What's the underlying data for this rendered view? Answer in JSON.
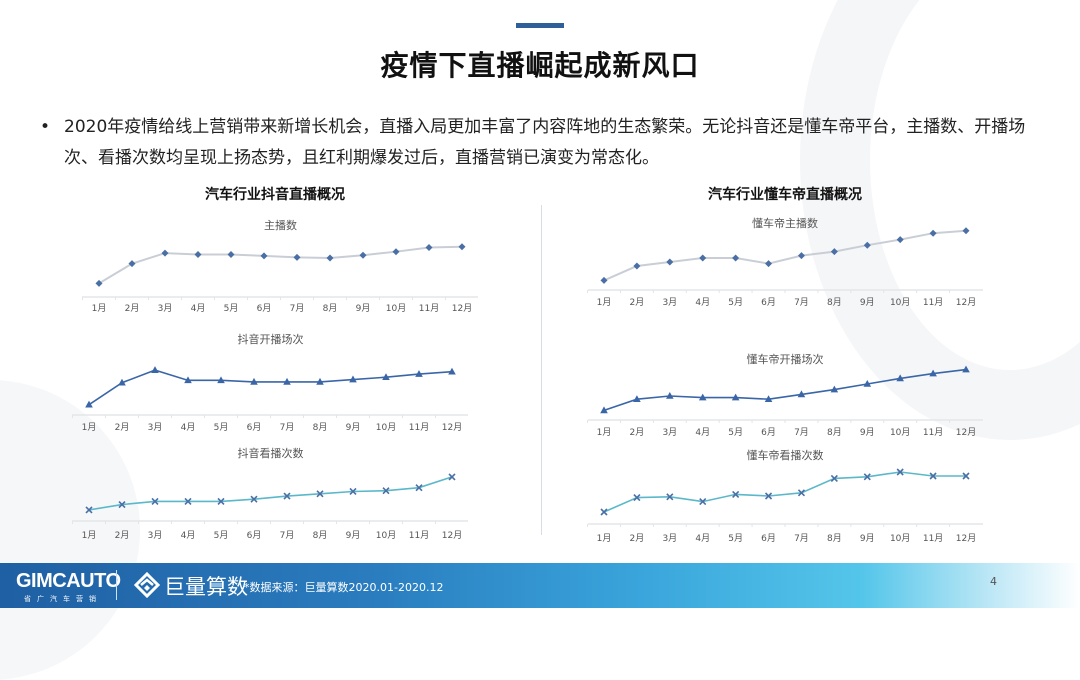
{
  "header": {
    "title": "疫情下直播崛起成新风口",
    "bullet_marker": "•",
    "bullet_text": "2020年疫情给线上营销带来新增长机会，直播入局更加丰富了内容阵地的生态繁荣。无论抖音还是懂车帝平台，主播数、开播场次、看播次数均呈现上扬态势，且红利期爆发过后，直播营销已演变为常态化。"
  },
  "panels": {
    "left_title": "汽车行业抖音直播概况",
    "right_title": "汽车行业懂车帝直播概况"
  },
  "footer": {
    "logo_main": "GIMCAUTO",
    "logo_sub": "省广汽车营销",
    "partner_name": "巨量算数",
    "source": "*数据来源：巨量算数2020.01-2020.12",
    "page_number": "4"
  },
  "colors": {
    "accent": "#2e5f99",
    "series_anchor": "#4a6fa5",
    "series_anchor_line": "#c9ced6",
    "series_sessions": "#3a66a8",
    "series_views_line": "#5bb8c9",
    "series_views_marker": "#4a6fa5"
  },
  "chart_data": [
    {
      "type": "line",
      "title": "主播数",
      "panel": "汽车行业抖音直播概况",
      "categories": [
        "1月",
        "2月",
        "3月",
        "4月",
        "5月",
        "6月",
        "7月",
        "8月",
        "9月",
        "10月",
        "11月",
        "12月"
      ],
      "values": [
        8,
        36,
        51,
        49,
        49,
        47,
        45,
        44,
        48,
        53,
        59,
        60
      ],
      "marker": "diamond",
      "ylabel": "",
      "xlabel": "",
      "y_axis_shown": false,
      "ylim": [
        0,
        100
      ],
      "note": "relative scale, no y-axis shown"
    },
    {
      "type": "line",
      "title": "抖音开播场次",
      "panel": "汽车行业抖音直播概况",
      "categories": [
        "1月",
        "2月",
        "3月",
        "4月",
        "5月",
        "6月",
        "7月",
        "8月",
        "9月",
        "10月",
        "11月",
        "12月"
      ],
      "values": [
        3,
        31,
        47,
        34,
        34,
        32,
        32,
        32,
        35,
        38,
        42,
        45
      ],
      "marker": "triangle",
      "ylabel": "",
      "xlabel": "",
      "y_axis_shown": false,
      "ylim": [
        0,
        100
      ]
    },
    {
      "type": "line",
      "title": "抖音看播次数",
      "panel": "汽车行业抖音直播概况",
      "categories": [
        "1月",
        "2月",
        "3月",
        "4月",
        "5月",
        "6月",
        "7月",
        "8月",
        "9月",
        "10月",
        "11月",
        "12月"
      ],
      "values": [
        4,
        11,
        15,
        15,
        15,
        18,
        22,
        25,
        28,
        29,
        33,
        47
      ],
      "marker": "x",
      "ylabel": "",
      "xlabel": "",
      "y_axis_shown": false,
      "ylim": [
        0,
        100
      ]
    },
    {
      "type": "line",
      "title": "懂车帝主播数",
      "panel": "汽车行业懂车帝直播概况",
      "categories": [
        "1月",
        "2月",
        "3月",
        "4月",
        "5月",
        "6月",
        "7月",
        "8月",
        "9月",
        "10月",
        "11月",
        "12月"
      ],
      "values": [
        2,
        20,
        25,
        30,
        30,
        23,
        33,
        38,
        46,
        53,
        61,
        64
      ],
      "marker": "diamond",
      "ylabel": "",
      "xlabel": "",
      "y_axis_shown": false,
      "ylim": [
        0,
        100
      ]
    },
    {
      "type": "line",
      "title": "懂车帝开播场次",
      "panel": "汽车行业懂车帝直播概况",
      "categories": [
        "1月",
        "2月",
        "3月",
        "4月",
        "5月",
        "6月",
        "7月",
        "8月",
        "9月",
        "10月",
        "11月",
        "12月"
      ],
      "values": [
        2,
        16,
        20,
        18,
        18,
        16,
        22,
        28,
        35,
        42,
        48,
        53
      ],
      "marker": "triangle",
      "ylabel": "",
      "xlabel": "",
      "y_axis_shown": false,
      "ylim": [
        0,
        100
      ]
    },
    {
      "type": "line",
      "title": "懂车帝看播次数",
      "panel": "汽车行业懂车帝直播概况",
      "categories": [
        "1月",
        "2月",
        "3月",
        "4月",
        "5月",
        "6月",
        "7月",
        "8月",
        "9月",
        "10月",
        "11月",
        "12月"
      ],
      "values": [
        5,
        23,
        24,
        18,
        27,
        25,
        29,
        47,
        49,
        55,
        50,
        50
      ],
      "marker": "x",
      "ylabel": "",
      "xlabel": "",
      "y_axis_shown": false,
      "ylim": [
        0,
        100
      ]
    }
  ]
}
